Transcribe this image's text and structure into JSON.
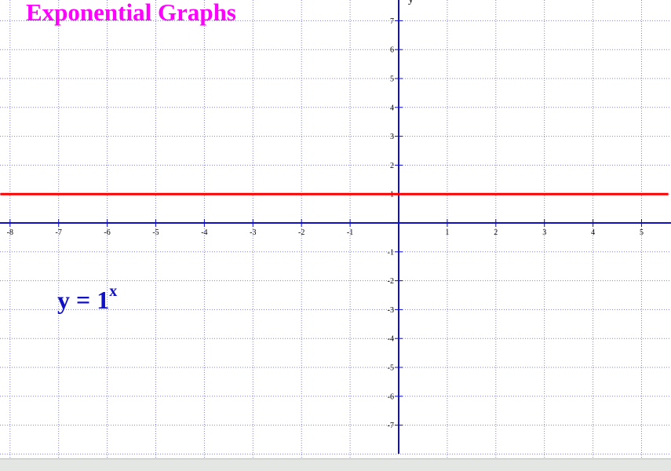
{
  "chart_data": {
    "type": "line",
    "title": "Exponential Graphs",
    "annotation": {
      "base": "y = 1",
      "exponent": "x"
    },
    "ylabel": "y",
    "xlim": [
      -8.2,
      5.55
    ],
    "ylim": [
      -8.0,
      7.9
    ],
    "x_ticks": [
      -8,
      -7,
      -6,
      -5,
      -4,
      -3,
      -2,
      -1,
      1,
      2,
      3,
      4,
      5
    ],
    "y_ticks": [
      -7,
      -6,
      -5,
      -4,
      -3,
      -2,
      -1,
      1,
      2,
      3,
      4,
      5,
      6,
      7
    ],
    "grid": true,
    "series": [
      {
        "x": [
          -8.2,
          5.55
        ],
        "y": [
          1,
          1
        ],
        "color": "#ff0000"
      }
    ]
  },
  "colors": {
    "title": "#ff00ff",
    "annotation": "#1010c8",
    "axis": "#1010c8",
    "grid": "#8080d8",
    "curve": "#ff0000"
  }
}
